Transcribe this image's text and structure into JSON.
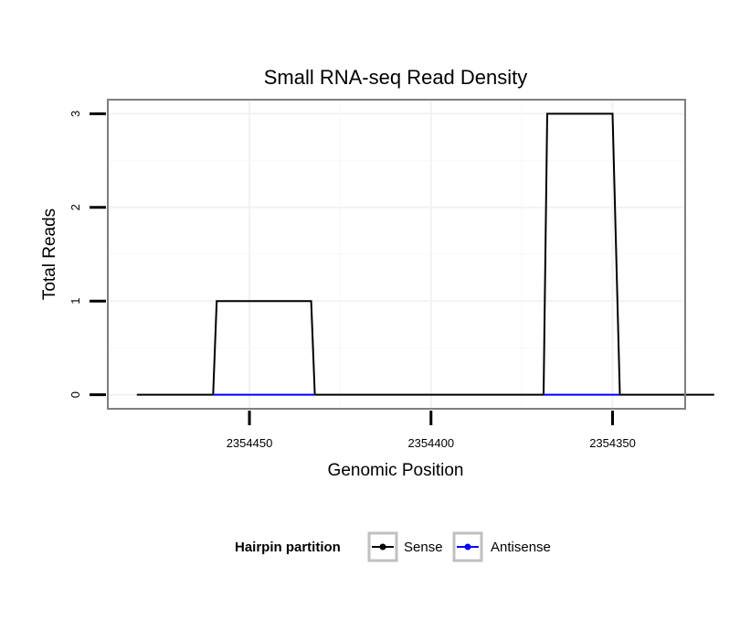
{
  "chart_data": {
    "type": "line",
    "title": "Small RNA-seq Read Density",
    "xlabel": "Genomic Position",
    "ylabel": "Total Reads",
    "x_reversed": true,
    "xlim": [
      2354489,
      2354330
    ],
    "ylim": [
      -0.15,
      3.15
    ],
    "x_ticks": [
      2354450,
      2354400,
      2354350
    ],
    "x_tick_labels": [
      "2354450",
      "2354400",
      "2354350"
    ],
    "y_ticks": [
      0,
      1,
      2,
      3
    ],
    "y_tick_labels": [
      "0",
      "1",
      "2",
      "3"
    ],
    "grid": true,
    "legend_position": "bottom",
    "legend_title": "Hairpin partition",
    "series": [
      {
        "name": "Sense",
        "color": "#000000",
        "x": [
          2354481,
          2354460,
          2354459,
          2354433,
          2354432,
          2354369,
          2354368,
          2354350,
          2354348,
          2354322
        ],
        "y": [
          0,
          0,
          1,
          1,
          0,
          0,
          3,
          3,
          0,
          0
        ]
      },
      {
        "name": "Antisense",
        "color": "#0000ff",
        "x": [
          2354460,
          2354432,
          2354369,
          2354348
        ],
        "y": [
          0,
          0,
          0,
          0
        ],
        "segments": [
          [
            0,
            1
          ],
          [
            2,
            3
          ]
        ]
      }
    ]
  }
}
